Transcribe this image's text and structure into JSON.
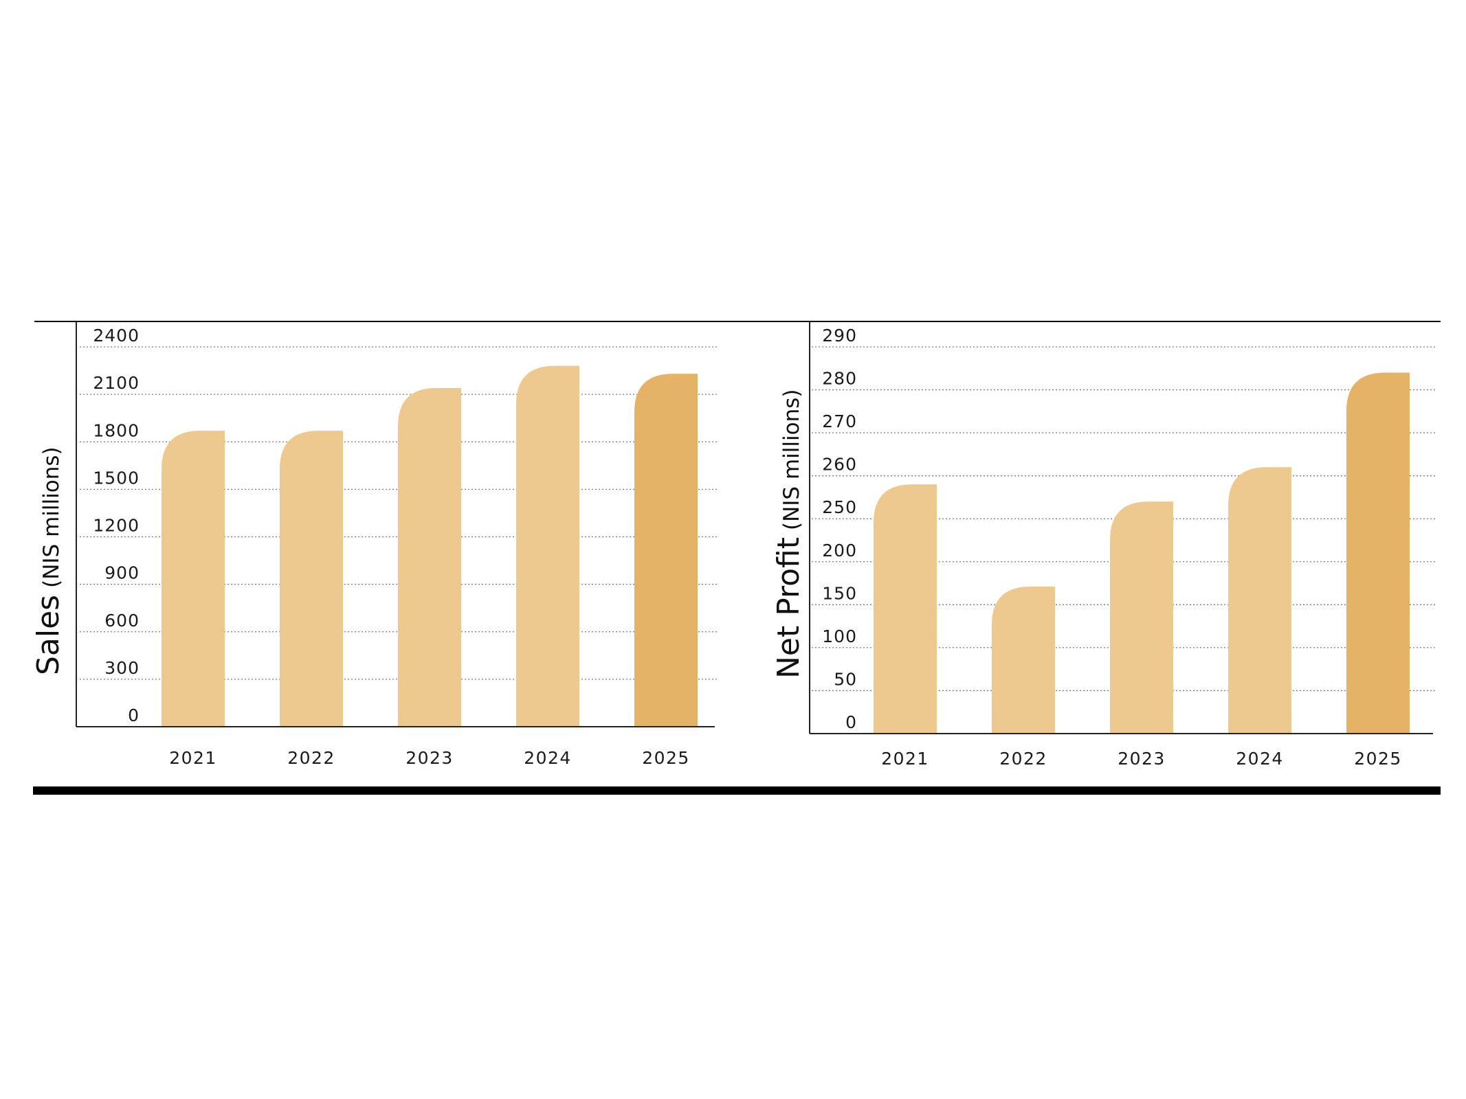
{
  "colors": {
    "bar": "#EDC990",
    "bar_highlight": "#E5B367",
    "axis": "#222222",
    "grid": "#7a7a7a",
    "rule": "#000000"
  },
  "chart_data": [
    {
      "type": "bar",
      "name": "sales",
      "title": "",
      "ylabel": "Sales",
      "ylabel_unit": "(NIS millions)",
      "categories": [
        "2021",
        "2022",
        "2023",
        "2024",
        "2025"
      ],
      "values": [
        1870,
        1870,
        2140,
        2280,
        2230
      ],
      "highlight_index": 4,
      "yticks": [
        "0",
        "300",
        "600",
        "900",
        "1200",
        "1500",
        "1800",
        "2100",
        "2400"
      ],
      "ylim": [
        0,
        2400
      ],
      "grid": true
    },
    {
      "type": "bar",
      "name": "net-profit",
      "title": "",
      "ylabel": "Net Profit",
      "ylabel_unit": "(NIS millions)",
      "categories": [
        "2021",
        "2022",
        "2023",
        "2024",
        "2025"
      ],
      "values": [
        258,
        171,
        254,
        262,
        284
      ],
      "highlight_index": 4,
      "yticks": [
        "0",
        "50",
        "100",
        "150",
        "200",
        "250",
        "260",
        "270",
        "280",
        "290"
      ],
      "ylim": [
        0,
        290
      ],
      "grid": true,
      "note": "non-linear axis: evenly spaced ticks"
    }
  ]
}
